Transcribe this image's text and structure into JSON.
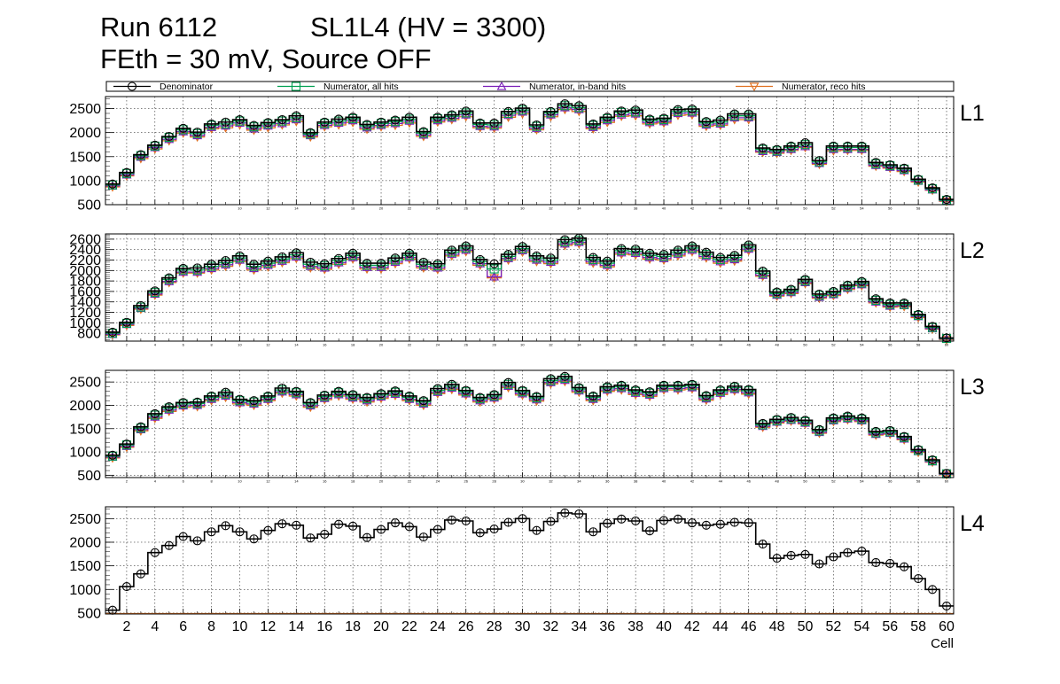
{
  "header": {
    "run": "Run 6112",
    "chamber": "SL1L4 (HV = 3300)",
    "conditions": "FEth = 30 mV, Source OFF"
  },
  "chart_data": {
    "type": "histogram-step",
    "xlabel": "Cell",
    "x_range": [
      1,
      61
    ],
    "x_major_ticks": [
      2,
      4,
      6,
      8,
      10,
      12,
      14,
      16,
      18,
      20,
      22,
      24,
      26,
      28,
      30,
      32,
      34,
      36,
      38,
      40,
      42,
      44,
      46,
      48,
      50,
      52,
      54,
      56,
      58,
      60
    ],
    "legend": [
      {
        "label": "Denominator",
        "color": "#000000",
        "marker": "circle"
      },
      {
        "label": "Numerator, all hits",
        "color": "#00a050",
        "marker": "square"
      },
      {
        "label": "Numerator, in-band hits",
        "color": "#7a1fb8",
        "marker": "triangle-up"
      },
      {
        "label": "Numerator, reco hits",
        "color": "#e07020",
        "marker": "triangle-down"
      }
    ],
    "panels": [
      {
        "name": "L1",
        "ylim": [
          500,
          2750
        ],
        "yticks": [
          500,
          1000,
          1500,
          2000,
          2500
        ],
        "series": {
          "Denominator": [
            930,
            1170,
            1540,
            1740,
            1920,
            2090,
            2010,
            2180,
            2220,
            2270,
            2150,
            2210,
            2270,
            2350,
            2000,
            2220,
            2280,
            2320,
            2170,
            2220,
            2260,
            2320,
            2020,
            2320,
            2370,
            2450,
            2200,
            2200,
            2440,
            2510,
            2160,
            2440,
            2600,
            2560,
            2180,
            2320,
            2450,
            2470,
            2280,
            2300,
            2480,
            2490,
            2230,
            2260,
            2390,
            2390,
            1680,
            1650,
            1720,
            1790,
            1420,
            1720,
            1720,
            1720,
            1380,
            1330,
            1260,
            1030,
            850,
            610
          ],
          "Numerator, all hits": [
            910,
            1150,
            1520,
            1720,
            1900,
            2060,
            1980,
            2150,
            2180,
            2240,
            2120,
            2180,
            2240,
            2310,
            1970,
            2190,
            2240,
            2290,
            2140,
            2190,
            2230,
            2280,
            1990,
            2290,
            2340,
            2410,
            2170,
            2160,
            2400,
            2470,
            2130,
            2410,
            2560,
            2520,
            2150,
            2290,
            2420,
            2430,
            2250,
            2270,
            2440,
            2450,
            2200,
            2220,
            2350,
            2350,
            1650,
            1620,
            1690,
            1750,
            1390,
            1690,
            1690,
            1690,
            1350,
            1310,
            1240,
            1010,
            830,
            590
          ],
          "Numerator, in-band hits": [
            890,
            1120,
            1490,
            1690,
            1860,
            2020,
            1940,
            2110,
            2140,
            2200,
            2080,
            2140,
            2190,
            2270,
            1940,
            2150,
            2200,
            2250,
            2100,
            2150,
            2190,
            2240,
            1950,
            2250,
            2300,
            2370,
            2130,
            2120,
            2360,
            2430,
            2090,
            2370,
            2520,
            2480,
            2110,
            2250,
            2370,
            2390,
            2210,
            2230,
            2400,
            2410,
            2160,
            2180,
            2310,
            2310,
            1610,
            1590,
            1650,
            1710,
            1360,
            1650,
            1650,
            1650,
            1320,
            1280,
            1210,
            990,
            810,
            580
          ],
          "Numerator, reco hits": [
            870,
            1100,
            1460,
            1660,
            1830,
            1990,
            1910,
            2080,
            2100,
            2160,
            2050,
            2100,
            2160,
            2230,
            1910,
            2120,
            2160,
            2210,
            2070,
            2120,
            2150,
            2200,
            1920,
            2220,
            2270,
            2330,
            2100,
            2090,
            2320,
            2390,
            2060,
            2330,
            2480,
            2440,
            2080,
            2210,
            2340,
            2350,
            2180,
            2200,
            2360,
            2370,
            2130,
            2150,
            2270,
            2270,
            1590,
            1570,
            1630,
            1690,
            1340,
            1620,
            1630,
            1630,
            1300,
            1260,
            1190,
            970,
            800,
            570
          ]
        }
      },
      {
        "name": "L2",
        "ylim": [
          650,
          2700
        ],
        "yticks": [
          800,
          1000,
          1200,
          1400,
          1600,
          1800,
          2000,
          2200,
          2400,
          2600
        ],
        "series": {
          "Denominator": [
            820,
            1010,
            1330,
            1610,
            1860,
            2040,
            2050,
            2120,
            2190,
            2280,
            2120,
            2180,
            2260,
            2340,
            2160,
            2130,
            2230,
            2330,
            2140,
            2140,
            2240,
            2330,
            2160,
            2130,
            2390,
            2470,
            2210,
            2130,
            2310,
            2460,
            2280,
            2240,
            2590,
            2620,
            2250,
            2180,
            2420,
            2410,
            2330,
            2310,
            2390,
            2470,
            2350,
            2250,
            2290,
            2490,
            1990,
            1590,
            1640,
            1830,
            1550,
            1600,
            1720,
            1790,
            1460,
            1380,
            1380,
            1160,
            930,
            710
          ],
          "Numerator, all hits": [
            800,
            990,
            1300,
            1580,
            1830,
            2010,
            2010,
            2080,
            2150,
            2240,
            2080,
            2140,
            2220,
            2300,
            2120,
            2090,
            2190,
            2290,
            2100,
            2100,
            2200,
            2290,
            2120,
            2090,
            2350,
            2430,
            2170,
            2030,
            2270,
            2420,
            2240,
            2200,
            2550,
            2580,
            2210,
            2140,
            2380,
            2370,
            2290,
            2270,
            2350,
            2430,
            2310,
            2210,
            2250,
            2450,
            1950,
            1560,
            1610,
            1800,
            1520,
            1570,
            1690,
            1760,
            1430,
            1350,
            1350,
            1140,
            910,
            700
          ],
          "Numerator, in-band hits": [
            780,
            970,
            1280,
            1550,
            1790,
            1970,
            1970,
            2040,
            2110,
            2200,
            2040,
            2100,
            2180,
            2260,
            2080,
            2050,
            2150,
            2250,
            2060,
            2060,
            2160,
            2250,
            2080,
            2050,
            2310,
            2390,
            2130,
            1880,
            2230,
            2380,
            2200,
            2160,
            2510,
            2540,
            2170,
            2100,
            2340,
            2330,
            2250,
            2230,
            2310,
            2390,
            2270,
            2170,
            2210,
            2410,
            1910,
            1530,
            1580,
            1770,
            1490,
            1540,
            1660,
            1730,
            1400,
            1320,
            1330,
            1120,
            890,
            690
          ],
          "Numerator, reco hits": [
            770,
            950,
            1260,
            1530,
            1770,
            1950,
            1950,
            2010,
            2080,
            2170,
            2010,
            2070,
            2150,
            2230,
            2050,
            2020,
            2120,
            2220,
            2030,
            2030,
            2130,
            2220,
            2050,
            2020,
            2280,
            2360,
            2100,
            1860,
            2200,
            2350,
            2170,
            2130,
            2480,
            2510,
            2140,
            2070,
            2310,
            2300,
            2220,
            2200,
            2280,
            2360,
            2240,
            2140,
            2180,
            2380,
            1890,
            1510,
            1560,
            1750,
            1470,
            1520,
            1640,
            1710,
            1380,
            1300,
            1310,
            1100,
            880,
            680
          ]
        }
      },
      {
        "name": "L3",
        "ylim": [
          450,
          2750
        ],
        "yticks": [
          500,
          1000,
          1500,
          2000,
          2500
        ],
        "series": {
          "Denominator": [
            930,
            1170,
            1540,
            1820,
            1970,
            2060,
            2070,
            2200,
            2280,
            2130,
            2100,
            2200,
            2370,
            2300,
            2060,
            2220,
            2300,
            2230,
            2170,
            2250,
            2310,
            2200,
            2100,
            2360,
            2450,
            2320,
            2170,
            2230,
            2490,
            2320,
            2190,
            2570,
            2620,
            2380,
            2200,
            2400,
            2430,
            2330,
            2290,
            2430,
            2430,
            2450,
            2210,
            2330,
            2410,
            2340,
            1610,
            1700,
            1740,
            1680,
            1480,
            1730,
            1770,
            1730,
            1440,
            1460,
            1330,
            1050,
            830,
            540
          ],
          "Numerator, all hits": [
            910,
            1150,
            1510,
            1790,
            1940,
            2030,
            2040,
            2170,
            2240,
            2100,
            2070,
            2170,
            2330,
            2270,
            2030,
            2190,
            2270,
            2200,
            2140,
            2220,
            2280,
            2170,
            2070,
            2320,
            2410,
            2290,
            2140,
            2200,
            2450,
            2290,
            2160,
            2530,
            2580,
            2350,
            2170,
            2370,
            2400,
            2300,
            2260,
            2400,
            2400,
            2420,
            2180,
            2300,
            2380,
            2310,
            1580,
            1670,
            1710,
            1650,
            1450,
            1700,
            1740,
            1700,
            1410,
            1430,
            1310,
            1030,
            810,
            530
          ],
          "Numerator, in-band hits": [
            890,
            1120,
            1480,
            1750,
            1900,
            1990,
            2000,
            2130,
            2200,
            2060,
            2030,
            2130,
            2290,
            2230,
            1990,
            2150,
            2230,
            2160,
            2100,
            2180,
            2240,
            2130,
            2030,
            2280,
            2370,
            2250,
            2100,
            2160,
            2410,
            2250,
            2120,
            2490,
            2540,
            2310,
            2130,
            2330,
            2360,
            2260,
            2220,
            2360,
            2360,
            2380,
            2140,
            2260,
            2340,
            2270,
            1550,
            1640,
            1680,
            1620,
            1420,
            1670,
            1710,
            1670,
            1380,
            1400,
            1280,
            1010,
            790,
            520
          ],
          "Numerator, reco hits": [
            870,
            1100,
            1450,
            1720,
            1870,
            1960,
            1970,
            2100,
            2170,
            2030,
            2000,
            2100,
            2260,
            2200,
            1960,
            2120,
            2200,
            2130,
            2070,
            2150,
            2210,
            2100,
            2000,
            2250,
            2340,
            2220,
            2070,
            2130,
            2380,
            2220,
            2090,
            2460,
            2510,
            2280,
            2100,
            2300,
            2330,
            2230,
            2190,
            2330,
            2330,
            2350,
            2110,
            2230,
            2310,
            2240,
            1530,
            1620,
            1660,
            1600,
            1400,
            1650,
            1690,
            1650,
            1360,
            1380,
            1260,
            990,
            780,
            510
          ]
        }
      },
      {
        "name": "L4",
        "ylim": [
          480,
          2750
        ],
        "yticks": [
          500,
          1000,
          1500,
          2000,
          2500
        ],
        "series": {
          "Denominator": [
            560,
            1060,
            1330,
            1780,
            1930,
            2120,
            2030,
            2220,
            2350,
            2220,
            2070,
            2250,
            2390,
            2360,
            2090,
            2170,
            2380,
            2340,
            2100,
            2270,
            2410,
            2330,
            2110,
            2270,
            2470,
            2450,
            2200,
            2280,
            2420,
            2500,
            2250,
            2440,
            2620,
            2600,
            2220,
            2400,
            2490,
            2450,
            2240,
            2460,
            2490,
            2410,
            2360,
            2380,
            2420,
            2410,
            1960,
            1660,
            1720,
            1740,
            1540,
            1690,
            1780,
            1810,
            1570,
            1550,
            1480,
            1230,
            1000,
            650
          ],
          "Numerator, reco hits": [
            490,
            490,
            490,
            490,
            490,
            490,
            490,
            490,
            490,
            490,
            490,
            490,
            490,
            490,
            490,
            490,
            490,
            490,
            490,
            490,
            490,
            490,
            490,
            490,
            490,
            490,
            490,
            490,
            490,
            490,
            490,
            490,
            490,
            490,
            490,
            490,
            490,
            490,
            490,
            490,
            490,
            490,
            490,
            490,
            490,
            490,
            490,
            490,
            490,
            490,
            490,
            490,
            490,
            490,
            490,
            490,
            490,
            490,
            490,
            490
          ]
        }
      }
    ]
  }
}
